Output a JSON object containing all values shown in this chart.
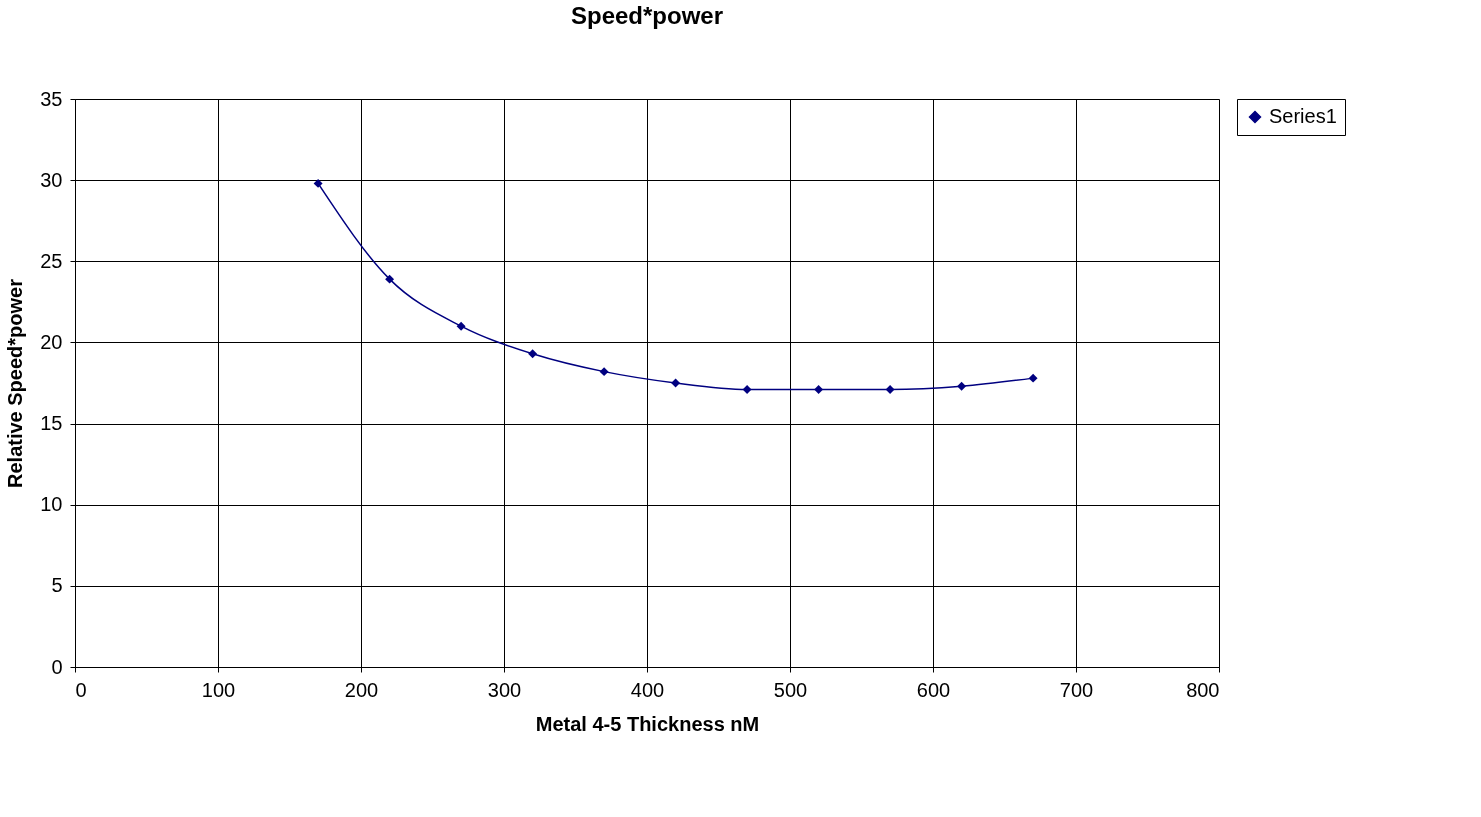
{
  "chart_data": {
    "type": "line",
    "title": "Speed*power",
    "xlabel": "Metal 4-5 Thickness nM",
    "ylabel": "Relative Speed*power",
    "x": [
      170,
      220,
      270,
      320,
      370,
      420,
      470,
      520,
      570,
      620,
      670
    ],
    "series": [
      {
        "name": "Series1",
        "color": "#000080",
        "values": [
          29.8,
          23.9,
          21.0,
          19.3,
          18.2,
          17.5,
          17.1,
          17.1,
          17.1,
          17.3,
          17.8
        ]
      }
    ],
    "xlim": [
      0,
      800
    ],
    "xticks": [
      0,
      100,
      200,
      300,
      400,
      500,
      600,
      700,
      800
    ],
    "ylim": [
      0,
      35
    ],
    "yticks": [
      0,
      5,
      10,
      15,
      20,
      25,
      30,
      35
    ],
    "grid": true,
    "legend": "right",
    "marker": "diamond",
    "line_style": "solid"
  }
}
